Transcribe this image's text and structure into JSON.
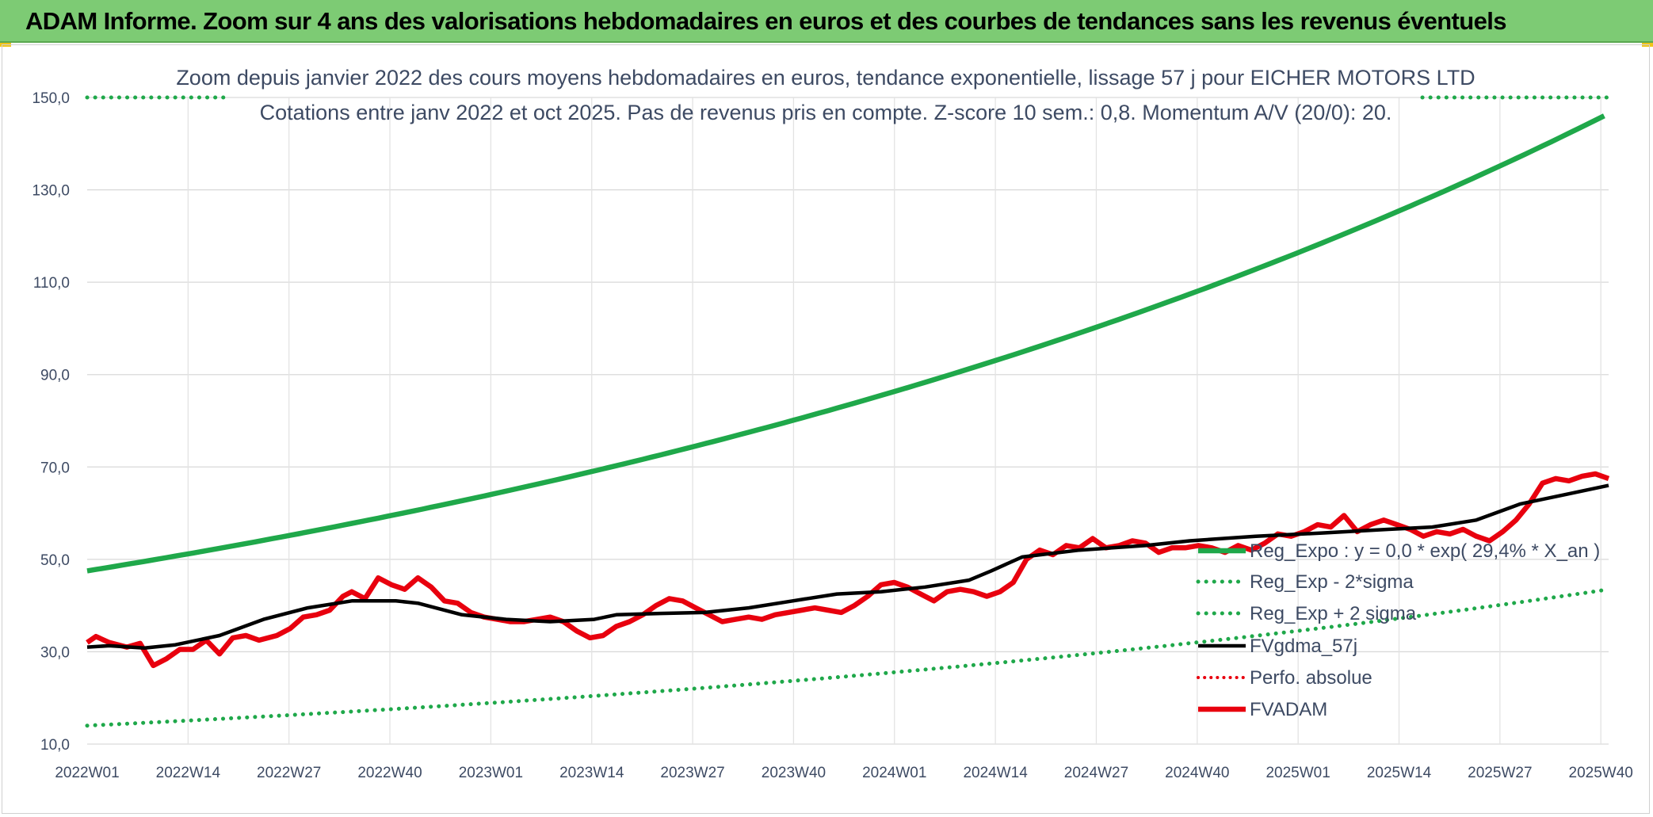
{
  "header": {
    "title": "ADAM Informe. Zoom sur 4 ans des valorisations hebdomadaires en euros et des courbes de tendances sans les revenus éventuels"
  },
  "chart_data": {
    "type": "line",
    "title_line1": "Zoom depuis janvier 2022 des cours moyens hebdomadaires en euros, tendance exponentielle, lissage 57 j pour EICHER MOTORS LTD",
    "title_line2": "Cotations entre janv 2022 et oct 2025. Pas de revenus pris en compte. Z-score 10 sem.: 0,8. Momentum A/V (20/0): 20.",
    "xlabel": "",
    "ylabel": "",
    "ylim": [
      10,
      150
    ],
    "y_ticks": [
      "10,0",
      "30,0",
      "50,0",
      "70,0",
      "90,0",
      "110,0",
      "130,0",
      "150,0"
    ],
    "x_tick_labels": [
      "2022W01",
      "2022W14",
      "2022W27",
      "2022W40",
      "2023W01",
      "2023W14",
      "2023W27",
      "2023W40",
      "2024W01",
      "2024W14",
      "2024W27",
      "2024W40",
      "2025W01",
      "2025W14",
      "2025W27",
      "2025W40"
    ],
    "n_weeks": 197,
    "grid": true,
    "legend_position": "bottom-right",
    "series": [
      {
        "name": "Reg_Expo : y = 0,0 * exp( 29,4% *  X_an )",
        "style": "solid",
        "color": "#1fa84a",
        "start": 47.5,
        "end": 146.5,
        "kind": "exponential"
      },
      {
        "name": "Reg_Exp - 2*sigma",
        "style": "dotted",
        "color": "#1fa84a",
        "start": 14.0,
        "end": 43.5,
        "kind": "exponential"
      },
      {
        "name": "Reg_Exp + 2 sigma",
        "style": "dotted",
        "color": "#1fa84a",
        "value": 150.0,
        "kind": "constant-clipped"
      },
      {
        "name": "FVgdma_57j",
        "style": "solid",
        "color": "#000000",
        "points": [
          [
            0,
            31.0
          ],
          [
            5,
            31.3
          ],
          [
            13,
            30.8
          ],
          [
            20,
            31.5
          ],
          [
            30,
            33.5
          ],
          [
            40,
            37.0
          ],
          [
            50,
            39.5
          ],
          [
            60,
            41.0
          ],
          [
            70,
            41.0
          ],
          [
            75,
            40.5
          ],
          [
            85,
            38.0
          ],
          [
            95,
            37.0
          ],
          [
            105,
            36.5
          ],
          [
            115,
            37.0
          ],
          [
            120,
            38.0
          ],
          [
            130,
            38.3
          ],
          [
            140,
            38.5
          ],
          [
            150,
            39.5
          ],
          [
            160,
            41.0
          ],
          [
            170,
            42.5
          ],
          [
            180,
            43.0
          ],
          [
            190,
            44.0
          ],
          [
            200,
            45.5
          ],
          [
            205,
            47.5
          ],
          [
            212,
            50.5
          ],
          [
            225,
            52.0
          ],
          [
            240,
            53.0
          ],
          [
            250,
            54.0
          ],
          [
            265,
            55.0
          ],
          [
            280,
            55.7
          ],
          [
            295,
            56.5
          ],
          [
            305,
            57.0
          ],
          [
            315,
            58.5
          ],
          [
            325,
            62.0
          ],
          [
            335,
            64.0
          ],
          [
            345,
            66.0
          ]
        ]
      },
      {
        "name": "Perfo. absolue",
        "style": "dotted",
        "color": "#e8000e",
        "points": []
      },
      {
        "name": "FVADAM",
        "style": "solid",
        "color": "#e8000e",
        "points": [
          [
            0,
            32.0
          ],
          [
            2,
            33.3
          ],
          [
            5,
            32.0
          ],
          [
            9,
            31.0
          ],
          [
            12,
            31.8
          ],
          [
            15,
            27.0
          ],
          [
            18,
            28.5
          ],
          [
            21,
            30.5
          ],
          [
            24,
            30.5
          ],
          [
            27,
            32.5
          ],
          [
            30,
            29.5
          ],
          [
            33,
            33.0
          ],
          [
            36,
            33.5
          ],
          [
            39,
            32.5
          ],
          [
            43,
            33.5
          ],
          [
            46,
            35.0
          ],
          [
            49,
            37.5
          ],
          [
            52,
            38.0
          ],
          [
            55,
            39.0
          ],
          [
            58,
            42.0
          ],
          [
            60,
            43.0
          ],
          [
            63,
            41.5
          ],
          [
            66,
            46.0
          ],
          [
            69,
            44.5
          ],
          [
            72,
            43.5
          ],
          [
            75,
            46.0
          ],
          [
            78,
            44.0
          ],
          [
            81,
            41.0
          ],
          [
            84,
            40.5
          ],
          [
            87,
            38.5
          ],
          [
            90,
            37.5
          ],
          [
            93,
            37.0
          ],
          [
            96,
            36.5
          ],
          [
            99,
            36.5
          ],
          [
            102,
            37.0
          ],
          [
            105,
            37.5
          ],
          [
            108,
            36.5
          ],
          [
            111,
            34.5
          ],
          [
            114,
            33.0
          ],
          [
            117,
            33.5
          ],
          [
            120,
            35.5
          ],
          [
            123,
            36.5
          ],
          [
            126,
            38.0
          ],
          [
            129,
            40.0
          ],
          [
            132,
            41.5
          ],
          [
            135,
            41.0
          ],
          [
            138,
            39.5
          ],
          [
            141,
            38.0
          ],
          [
            144,
            36.5
          ],
          [
            147,
            37.0
          ],
          [
            150,
            37.5
          ],
          [
            153,
            37.0
          ],
          [
            156,
            38.0
          ],
          [
            159,
            38.5
          ],
          [
            162,
            39.0
          ],
          [
            165,
            39.5
          ],
          [
            168,
            39.0
          ],
          [
            171,
            38.5
          ],
          [
            174,
            40.0
          ],
          [
            177,
            42.0
          ],
          [
            180,
            44.5
          ],
          [
            183,
            45.0
          ],
          [
            186,
            44.0
          ],
          [
            189,
            42.5
          ],
          [
            192,
            41.0
          ],
          [
            195,
            43.0
          ],
          [
            198,
            43.5
          ],
          [
            201,
            43.0
          ],
          [
            204,
            42.0
          ],
          [
            207,
            43.0
          ],
          [
            210,
            45.0
          ],
          [
            213,
            50.0
          ],
          [
            216,
            52.0
          ],
          [
            219,
            51.0
          ],
          [
            222,
            53.0
          ],
          [
            225,
            52.5
          ],
          [
            228,
            54.5
          ],
          [
            231,
            52.5
          ],
          [
            234,
            53.0
          ],
          [
            237,
            54.0
          ],
          [
            240,
            53.5
          ],
          [
            243,
            51.5
          ],
          [
            246,
            52.5
          ],
          [
            249,
            52.5
          ],
          [
            252,
            53.0
          ],
          [
            255,
            52.5
          ],
          [
            258,
            51.5
          ],
          [
            261,
            53.0
          ],
          [
            264,
            52.0
          ],
          [
            267,
            53.5
          ],
          [
            270,
            55.5
          ],
          [
            273,
            55.0
          ],
          [
            276,
            56.0
          ],
          [
            279,
            57.5
          ],
          [
            282,
            57.0
          ],
          [
            285,
            59.5
          ],
          [
            288,
            56.0
          ],
          [
            291,
            57.5
          ],
          [
            294,
            58.5
          ],
          [
            297,
            57.5
          ],
          [
            300,
            56.5
          ],
          [
            303,
            55.0
          ],
          [
            306,
            56.0
          ],
          [
            309,
            55.5
          ],
          [
            312,
            56.5
          ],
          [
            315,
            55.0
          ],
          [
            318,
            54.0
          ],
          [
            321,
            56.0
          ],
          [
            324,
            58.5
          ],
          [
            327,
            62.0
          ],
          [
            330,
            66.5
          ],
          [
            333,
            67.5
          ],
          [
            336,
            67.0
          ],
          [
            339,
            68.0
          ],
          [
            342,
            68.5
          ],
          [
            345,
            67.5
          ]
        ]
      }
    ]
  }
}
